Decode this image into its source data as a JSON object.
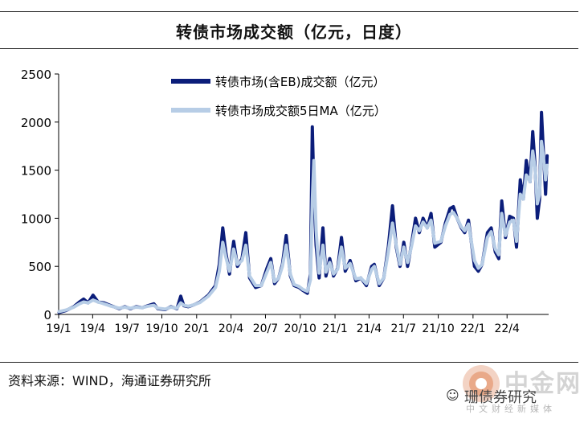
{
  "title": "转债市场成交额（亿元，日度）",
  "source": "资料来源：WIND，海通证券研究所",
  "watermark": {
    "brand": "中金网",
    "subtitle": "中文财经新媒体",
    "account": "珊债券研究",
    "wechat_icon": "wechat-icon",
    "logo_icon": "zhongjinwang-logo-icon"
  },
  "chart_data": {
    "type": "line",
    "ylim": [
      0,
      2500
    ],
    "yticks": [
      0,
      500,
      1000,
      1500,
      2000,
      2500
    ],
    "xtick_labels": [
      "19/1",
      "19/4",
      "19/7",
      "19/10",
      "20/1",
      "20/4",
      "20/7",
      "20/10",
      "21/1",
      "21/4",
      "21/7",
      "21/10",
      "22/1",
      "22/4"
    ],
    "grid": false,
    "legend_position": "top-left",
    "series_colors": [
      "#0b1d7a",
      "#b7cde6"
    ],
    "series": [
      {
        "name": "转债市场(含EB)成交额（亿元）",
        "points": [
          [
            "19/1/02",
            20
          ],
          [
            "19/1/20",
            40
          ],
          [
            "19/2/10",
            80
          ],
          [
            "19/2/25",
            130
          ],
          [
            "19/3/08",
            160
          ],
          [
            "19/3/20",
            120
          ],
          [
            "19/4/02",
            200
          ],
          [
            "19/4/15",
            130
          ],
          [
            "19/5/01",
            120
          ],
          [
            "19/5/20",
            90
          ],
          [
            "19/6/10",
            60
          ],
          [
            "19/6/25",
            80
          ],
          [
            "19/7/10",
            60
          ],
          [
            "19/7/25",
            80
          ],
          [
            "19/8/10",
            70
          ],
          [
            "19/8/25",
            90
          ],
          [
            "19/9/10",
            110
          ],
          [
            "19/9/20",
            60
          ],
          [
            "19/10/10",
            50
          ],
          [
            "19/10/25",
            80
          ],
          [
            "19/11/10",
            60
          ],
          [
            "19/11/20",
            190
          ],
          [
            "19/11/28",
            90
          ],
          [
            "19/12/10",
            80
          ],
          [
            "19/12/25",
            100
          ],
          [
            "20/1/10",
            130
          ],
          [
            "20/2/01",
            200
          ],
          [
            "20/2/20",
            300
          ],
          [
            "20/3/01",
            520
          ],
          [
            "20/3/10",
            900
          ],
          [
            "20/3/18",
            650
          ],
          [
            "20/3/28",
            420
          ],
          [
            "20/4/08",
            760
          ],
          [
            "20/4/18",
            500
          ],
          [
            "20/4/30",
            580
          ],
          [
            "20/5/10",
            850
          ],
          [
            "20/5/20",
            380
          ],
          [
            "20/6/05",
            280
          ],
          [
            "20/6/20",
            300
          ],
          [
            "20/7/05",
            480
          ],
          [
            "20/7/15",
            580
          ],
          [
            "20/7/25",
            320
          ],
          [
            "20/8/05",
            380
          ],
          [
            "20/8/15",
            520
          ],
          [
            "20/8/25",
            820
          ],
          [
            "20/9/05",
            400
          ],
          [
            "20/9/15",
            300
          ],
          [
            "20/9/28",
            280
          ],
          [
            "20/10/08",
            250
          ],
          [
            "20/10/20",
            220
          ],
          [
            "20/10/28",
            420
          ],
          [
            "20/11/02",
            1950
          ],
          [
            "20/11/06",
            1300
          ],
          [
            "20/11/12",
            720
          ],
          [
            "20/11/20",
            380
          ],
          [
            "20/11/30",
            900
          ],
          [
            "20/12/08",
            400
          ],
          [
            "20/12/18",
            580
          ],
          [
            "20/12/28",
            400
          ],
          [
            "21/1/08",
            480
          ],
          [
            "21/1/18",
            800
          ],
          [
            "21/1/28",
            450
          ],
          [
            "21/2/10",
            560
          ],
          [
            "21/2/25",
            350
          ],
          [
            "21/3/10",
            380
          ],
          [
            "21/3/25",
            300
          ],
          [
            "21/4/08",
            500
          ],
          [
            "21/4/15",
            520
          ],
          [
            "21/4/28",
            300
          ],
          [
            "21/5/10",
            380
          ],
          [
            "21/5/22",
            700
          ],
          [
            "21/6/02",
            1130
          ],
          [
            "21/6/12",
            700
          ],
          [
            "21/6/22",
            500
          ],
          [
            "21/7/02",
            750
          ],
          [
            "21/7/12",
            500
          ],
          [
            "21/7/22",
            720
          ],
          [
            "21/8/02",
            1000
          ],
          [
            "21/8/12",
            850
          ],
          [
            "21/8/22",
            1000
          ],
          [
            "21/9/02",
            900
          ],
          [
            "21/9/12",
            1050
          ],
          [
            "21/9/22",
            700
          ],
          [
            "21/10/08",
            750
          ],
          [
            "21/10/20",
            950
          ],
          [
            "21/11/01",
            1100
          ],
          [
            "21/11/10",
            1120
          ],
          [
            "21/11/20",
            1000
          ],
          [
            "21/12/01",
            900
          ],
          [
            "21/12/10",
            850
          ],
          [
            "21/12/20",
            980
          ],
          [
            "22/1/05",
            500
          ],
          [
            "22/1/15",
            450
          ],
          [
            "22/1/25",
            520
          ],
          [
            "22/2/08",
            850
          ],
          [
            "22/2/18",
            900
          ],
          [
            "22/3/01",
            650
          ],
          [
            "22/3/10",
            580
          ],
          [
            "22/3/18",
            1180
          ],
          [
            "22/3/28",
            800
          ],
          [
            "22/4/08",
            1020
          ],
          [
            "22/4/18",
            1000
          ],
          [
            "22/4/26",
            700
          ],
          [
            "22/5/06",
            1400
          ],
          [
            "22/5/14",
            1200
          ],
          [
            "22/5/22",
            1600
          ],
          [
            "22/6/01",
            1380
          ],
          [
            "22/6/08",
            1900
          ],
          [
            "22/6/14",
            1550
          ],
          [
            "22/6/20",
            1000
          ],
          [
            "22/6/26",
            1200
          ],
          [
            "22/7/01",
            2100
          ],
          [
            "22/7/06",
            1700
          ],
          [
            "22/7/12",
            1250
          ],
          [
            "22/7/16",
            1650
          ]
        ]
      },
      {
        "name": "转债市场成交额5日MA（亿元）",
        "points": [
          [
            "19/1/02",
            30
          ],
          [
            "19/1/20",
            45
          ],
          [
            "19/2/10",
            75
          ],
          [
            "19/2/25",
            110
          ],
          [
            "19/3/08",
            130
          ],
          [
            "19/3/20",
            120
          ],
          [
            "19/4/02",
            150
          ],
          [
            "19/4/15",
            130
          ],
          [
            "19/5/01",
            110
          ],
          [
            "19/5/20",
            85
          ],
          [
            "19/6/10",
            65
          ],
          [
            "19/6/25",
            75
          ],
          [
            "19/7/10",
            65
          ],
          [
            "19/7/25",
            75
          ],
          [
            "19/8/10",
            70
          ],
          [
            "19/8/25",
            85
          ],
          [
            "19/9/10",
            95
          ],
          [
            "19/9/20",
            65
          ],
          [
            "19/10/10",
            55
          ],
          [
            "19/10/25",
            75
          ],
          [
            "19/11/10",
            65
          ],
          [
            "19/11/20",
            120
          ],
          [
            "19/11/28",
            95
          ],
          [
            "19/12/10",
            85
          ],
          [
            "19/12/25",
            100
          ],
          [
            "20/1/10",
            125
          ],
          [
            "20/2/01",
            190
          ],
          [
            "20/2/20",
            280
          ],
          [
            "20/3/01",
            450
          ],
          [
            "20/3/10",
            750
          ],
          [
            "20/3/18",
            600
          ],
          [
            "20/3/28",
            450
          ],
          [
            "20/4/08",
            680
          ],
          [
            "20/4/18",
            520
          ],
          [
            "20/4/30",
            560
          ],
          [
            "20/5/10",
            720
          ],
          [
            "20/5/20",
            400
          ],
          [
            "20/6/05",
            300
          ],
          [
            "20/6/20",
            300
          ],
          [
            "20/7/05",
            440
          ],
          [
            "20/7/15",
            540
          ],
          [
            "20/7/25",
            340
          ],
          [
            "20/8/05",
            380
          ],
          [
            "20/8/15",
            500
          ],
          [
            "20/8/25",
            720
          ],
          [
            "20/9/05",
            420
          ],
          [
            "20/9/15",
            310
          ],
          [
            "20/9/28",
            290
          ],
          [
            "20/10/08",
            260
          ],
          [
            "20/10/20",
            240
          ],
          [
            "20/10/28",
            360
          ],
          [
            "20/11/02",
            1200
          ],
          [
            "20/11/06",
            1600
          ],
          [
            "20/11/12",
            880
          ],
          [
            "20/11/20",
            430
          ],
          [
            "20/11/30",
            720
          ],
          [
            "20/12/08",
            440
          ],
          [
            "20/12/18",
            540
          ],
          [
            "20/12/28",
            420
          ],
          [
            "21/1/08",
            470
          ],
          [
            "21/1/18",
            700
          ],
          [
            "21/1/28",
            480
          ],
          [
            "21/2/10",
            530
          ],
          [
            "21/2/25",
            370
          ],
          [
            "21/3/10",
            380
          ],
          [
            "21/3/25",
            320
          ],
          [
            "21/4/08",
            470
          ],
          [
            "21/4/15",
            500
          ],
          [
            "21/4/28",
            320
          ],
          [
            "21/5/10",
            380
          ],
          [
            "21/5/22",
            650
          ],
          [
            "21/6/02",
            950
          ],
          [
            "21/6/12",
            720
          ],
          [
            "21/6/22",
            520
          ],
          [
            "21/7/02",
            700
          ],
          [
            "21/7/12",
            540
          ],
          [
            "21/7/22",
            700
          ],
          [
            "21/8/02",
            920
          ],
          [
            "21/8/12",
            870
          ],
          [
            "21/8/22",
            960
          ],
          [
            "21/9/02",
            900
          ],
          [
            "21/9/12",
            980
          ],
          [
            "21/9/22",
            740
          ],
          [
            "21/10/08",
            760
          ],
          [
            "21/10/20",
            920
          ],
          [
            "21/11/01",
            1040
          ],
          [
            "21/11/10",
            1060
          ],
          [
            "21/11/20",
            1000
          ],
          [
            "21/12/01",
            910
          ],
          [
            "21/12/10",
            870
          ],
          [
            "21/12/20",
            940
          ],
          [
            "22/1/05",
            560
          ],
          [
            "22/1/15",
            480
          ],
          [
            "22/1/25",
            520
          ],
          [
            "22/2/08",
            800
          ],
          [
            "22/2/18",
            860
          ],
          [
            "22/3/01",
            680
          ],
          [
            "22/3/10",
            620
          ],
          [
            "22/3/18",
            1050
          ],
          [
            "22/3/28",
            820
          ],
          [
            "22/4/08",
            960
          ],
          [
            "22/4/18",
            980
          ],
          [
            "22/4/26",
            760
          ],
          [
            "22/5/06",
            1250
          ],
          [
            "22/5/14",
            1200
          ],
          [
            "22/5/22",
            1450
          ],
          [
            "22/6/01",
            1380
          ],
          [
            "22/6/08",
            1700
          ],
          [
            "22/6/14",
            1520
          ],
          [
            "22/6/20",
            1150
          ],
          [
            "22/6/26",
            1250
          ],
          [
            "22/7/01",
            1800
          ],
          [
            "22/7/06",
            1650
          ],
          [
            "22/7/12",
            1400
          ],
          [
            "22/7/16",
            1550
          ]
        ]
      }
    ]
  }
}
